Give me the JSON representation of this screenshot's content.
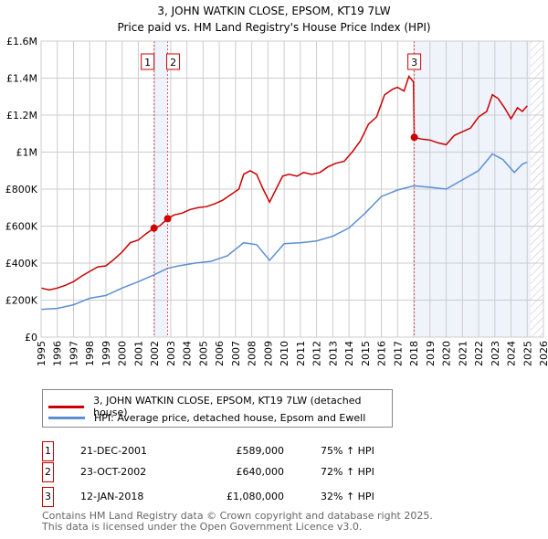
{
  "chart_data": {
    "type": "line",
    "title": "3, JOHN WATKIN CLOSE, EPSOM, KT19 7LW",
    "subtitle": "Price paid vs. HM Land Registry's House Price Index (HPI)",
    "xlim": [
      1995,
      2026
    ],
    "ylim": [
      0,
      1600000
    ],
    "x_ticks": [
      "1995",
      "1996",
      "1997",
      "1998",
      "1999",
      "2000",
      "2001",
      "2002",
      "2003",
      "2004",
      "2005",
      "2006",
      "2007",
      "2008",
      "2009",
      "2010",
      "2011",
      "2012",
      "2013",
      "2014",
      "2015",
      "2016",
      "2017",
      "2018",
      "2019",
      "2020",
      "2021",
      "2022",
      "2023",
      "2024",
      "2025",
      "2026"
    ],
    "y_ticks": [
      {
        "v": 0,
        "label": "£0"
      },
      {
        "v": 200000,
        "label": "£200K"
      },
      {
        "v": 400000,
        "label": "£400K"
      },
      {
        "v": 600000,
        "label": "£600K"
      },
      {
        "v": 800000,
        "label": "£800K"
      },
      {
        "v": 1000000,
        "label": "£1M"
      },
      {
        "v": 1200000,
        "label": "£1.2M"
      },
      {
        "v": 1400000,
        "label": "£1.4M"
      },
      {
        "v": 1600000,
        "label": "£1.6M"
      }
    ],
    "grid": true,
    "forecast_hatch_from": 2025.2,
    "series": [
      {
        "name": "3, JOHN WATKIN CLOSE, EPSOM, KT19 7LW (detached house)",
        "color": "#cc0000",
        "x": [
          1995.0,
          1995.5,
          1996.0,
          1996.5,
          1997.0,
          1997.5,
          1998.0,
          1998.5,
          1999.0,
          1999.5,
          2000.0,
          2000.5,
          2001.0,
          2001.5,
          2001.97,
          2002.3,
          2002.81,
          2003.2,
          2003.7,
          2004.2,
          2004.7,
          2005.2,
          2005.7,
          2006.2,
          2006.7,
          2007.2,
          2007.5,
          2007.9,
          2008.3,
          2008.7,
          2009.1,
          2009.5,
          2009.9,
          2010.3,
          2010.8,
          2011.2,
          2011.7,
          2012.2,
          2012.7,
          2013.2,
          2013.7,
          2014.2,
          2014.7,
          2015.2,
          2015.7,
          2016.2,
          2016.7,
          2017.0,
          2017.4,
          2017.7,
          2017.98,
          2018.03,
          2018.5,
          2019.0,
          2019.5,
          2020.0,
          2020.5,
          2021.0,
          2021.5,
          2022.0,
          2022.5,
          2022.85,
          2023.2,
          2023.6,
          2024.0,
          2024.4,
          2024.7,
          2025.0
        ],
        "y": [
          265000,
          255000,
          265000,
          280000,
          300000,
          330000,
          355000,
          380000,
          385000,
          420000,
          460000,
          510000,
          525000,
          560000,
          589000,
          600000,
          640000,
          660000,
          670000,
          690000,
          700000,
          705000,
          720000,
          740000,
          770000,
          800000,
          880000,
          900000,
          880000,
          800000,
          730000,
          800000,
          870000,
          880000,
          870000,
          890000,
          880000,
          890000,
          920000,
          940000,
          950000,
          1000000,
          1060000,
          1150000,
          1190000,
          1310000,
          1340000,
          1350000,
          1330000,
          1410000,
          1380000,
          1080000,
          1070000,
          1065000,
          1050000,
          1040000,
          1090000,
          1110000,
          1130000,
          1190000,
          1220000,
          1310000,
          1290000,
          1240000,
          1180000,
          1240000,
          1220000,
          1250000
        ]
      },
      {
        "name": "HPI: Average price, detached house, Epsom and Ewell",
        "color": "#5b8fd4",
        "x": [
          1995,
          1996,
          1997,
          1998,
          1999,
          2000,
          2001,
          2001.97,
          2002.81,
          2003.5,
          2004.5,
          2005.5,
          2006.5,
          2007.5,
          2008.3,
          2009.1,
          2010,
          2011,
          2012,
          2013,
          2014,
          2015,
          2016,
          2017,
          2018,
          2019,
          2020,
          2021,
          2022,
          2022.85,
          2023.5,
          2024.2,
          2024.7,
          2025
        ],
        "y": [
          150000,
          155000,
          175000,
          210000,
          225000,
          265000,
          300000,
          337000,
          372000,
          385000,
          400000,
          410000,
          440000,
          510000,
          500000,
          415000,
          505000,
          510000,
          520000,
          545000,
          590000,
          670000,
          760000,
          795000,
          818000,
          810000,
          800000,
          850000,
          900000,
          990000,
          960000,
          890000,
          935000,
          945000
        ]
      }
    ],
    "transactions": [
      {
        "id": "1",
        "x": 2001.97,
        "date": "21-DEC-2001",
        "price_value": 589000,
        "price": "£589,000",
        "hpi": "75% ↑ HPI"
      },
      {
        "id": "2",
        "x": 2002.81,
        "date": "23-OCT-2002",
        "price_value": 640000,
        "price": "£640,000",
        "hpi": "72% ↑ HPI"
      },
      {
        "id": "3",
        "x": 2018.03,
        "date": "12-JAN-2018",
        "price_value": 1080000,
        "price": "£1,080,000",
        "hpi": "32% ↑ HPI"
      }
    ]
  },
  "footer": {
    "line1": "Contains HM Land Registry data © Crown copyright and database right 2025.",
    "line2": "This data is licensed under the Open Government Licence v3.0."
  }
}
